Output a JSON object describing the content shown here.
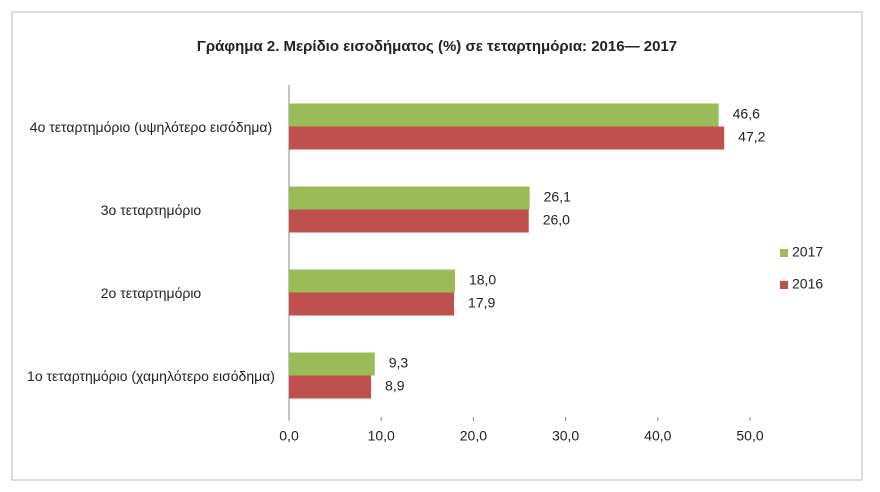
{
  "chart_data": {
    "type": "hbar",
    "title": "Γράφημα 2. Μερίδιο εισοδήματος (%)  σε τεταρτημόρια: 2016— 2017",
    "categories": [
      "4ο τεταρτημόριο (υψηλότερο εισόδημα)",
      "3ο τεταρτημόριο",
      "2ο τεταρτημόριο",
      "1ο τεταρτημόριο (χαμηλότερο εισόδημα)"
    ],
    "series": [
      {
        "name": "2017",
        "color": "#9bbb59",
        "values": [
          46.6,
          26.1,
          18.0,
          9.3
        ],
        "value_labels": [
          "46,6",
          "26,1",
          "18,0",
          "9,3"
        ]
      },
      {
        "name": "2016",
        "color": "#c0504d",
        "values": [
          47.2,
          26.0,
          17.9,
          8.9
        ],
        "value_labels": [
          "47,2",
          "26,0",
          "17,9",
          "8,9"
        ]
      }
    ],
    "xlim": [
      0,
      50
    ],
    "xticks": [
      {
        "value": 0,
        "label": "0,0"
      },
      {
        "value": 10,
        "label": "10,0"
      },
      {
        "value": 20,
        "label": "20,0"
      },
      {
        "value": 30,
        "label": "30,0"
      },
      {
        "value": 40,
        "label": "40,0"
      },
      {
        "value": 50,
        "label": "50,0"
      }
    ],
    "legend": "right"
  }
}
